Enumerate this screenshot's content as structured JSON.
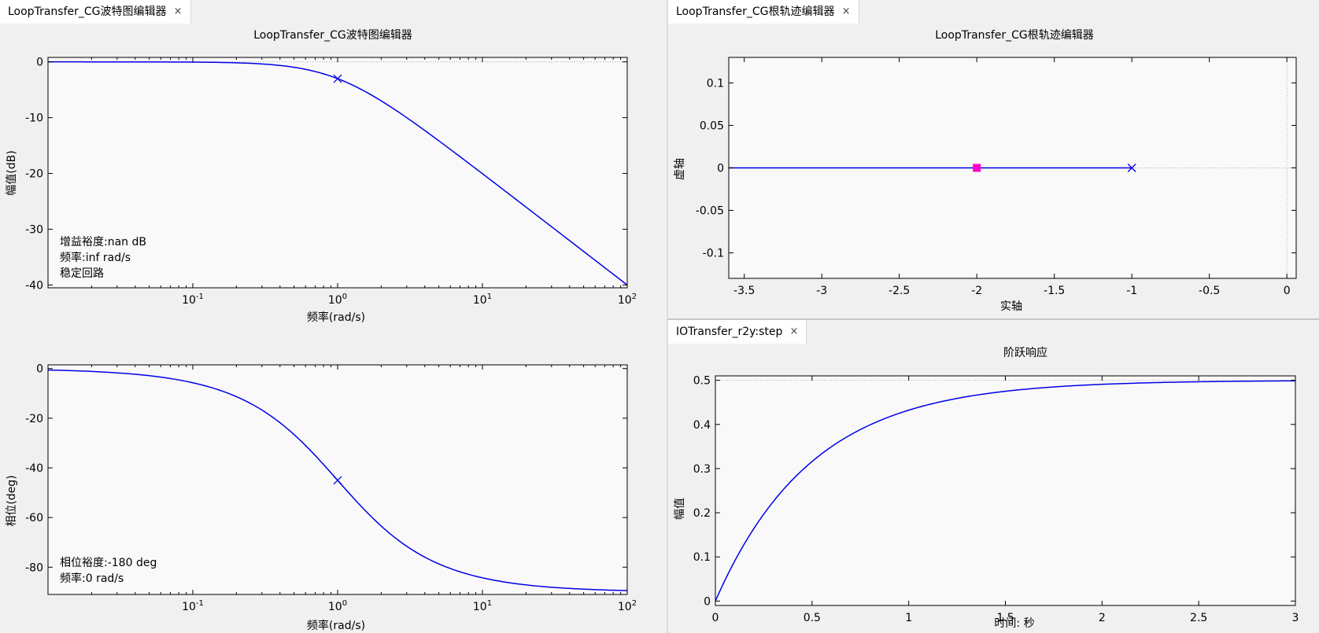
{
  "tabs": {
    "bode": "LoopTransfer_CG波特图编辑器",
    "rlocus": "LoopTransfer_CG根轨迹编辑器",
    "step": "IOTransfer_r2y:step",
    "close_glyph": "×"
  },
  "bode_mag": {
    "title": "LoopTransfer_CG波特图编辑器",
    "xlabel": "频率(rad/s)",
    "ylabel": "幅值(dB)",
    "annotations": [
      "增益裕度:nan dB",
      "频率:inf rad/s",
      "稳定回路"
    ]
  },
  "bode_phase": {
    "xlabel": "频率(rad/s)",
    "ylabel": "相位(deg)",
    "annotations": [
      "相位裕度:-180 deg",
      "频率:0 rad/s"
    ]
  },
  "rlocus": {
    "title": "LoopTransfer_CG根轨迹编辑器",
    "xlabel": "实轴",
    "ylabel": "虚轴"
  },
  "step": {
    "title": "阶跃响应",
    "xlabel": "时间: 秒",
    "ylabel": "幅值"
  },
  "chart_data": [
    {
      "type": "line",
      "id": "bode-magnitude",
      "title": "LoopTransfer_CG波特图编辑器",
      "xlabel": "频率(rad/s)",
      "ylabel": "幅值(dB)",
      "xscale": "log",
      "xlim": [
        0.01,
        100
      ],
      "ylim": [
        -40.5,
        0.8
      ],
      "xticks": [
        0.1,
        1,
        10,
        100
      ],
      "xtick_labels": [
        "10-1",
        "100",
        "101",
        "102"
      ],
      "yticks": [
        0,
        -10,
        -20,
        -30,
        -40
      ],
      "series": [
        {
          "x": [
            0.01,
            0.1,
            0.2,
            0.5,
            1,
            2,
            5,
            10,
            20,
            50,
            100
          ],
          "values": [
            0.0,
            -0.04,
            -0.17,
            -0.97,
            -3.01,
            -6.99,
            -14.15,
            -20.04,
            -26.03,
            -33.98,
            -40.0
          ]
        }
      ],
      "markers": [
        {
          "x": 1,
          "y": -3.01,
          "shape": "x"
        }
      ],
      "legend": "none",
      "grid": false
    },
    {
      "type": "line",
      "id": "bode-phase",
      "xlabel": "频率(rad/s)",
      "ylabel": "相位(deg)",
      "xscale": "log",
      "xlim": [
        0.01,
        100
      ],
      "ylim": [
        -91,
        1.5
      ],
      "xticks": [
        0.1,
        1,
        10,
        100
      ],
      "xtick_labels": [
        "10-1",
        "100",
        "101",
        "102"
      ],
      "yticks": [
        0,
        -20,
        -40,
        -60,
        -80
      ],
      "series": [
        {
          "x": [
            0.01,
            0.1,
            0.2,
            0.5,
            1,
            2,
            5,
            10,
            20,
            50,
            100
          ],
          "values": [
            -0.57,
            -5.71,
            -11.31,
            -26.57,
            -45.0,
            -63.43,
            -78.69,
            -84.29,
            -87.14,
            -88.85,
            -89.43
          ]
        }
      ],
      "markers": [
        {
          "x": 1,
          "y": -45.0,
          "shape": "x"
        }
      ],
      "legend": "none",
      "grid": false
    },
    {
      "type": "line",
      "id": "root-locus",
      "title": "LoopTransfer_CG根轨迹编辑器",
      "xlabel": "实轴",
      "ylabel": "虚轴",
      "xlim": [
        -3.6,
        0.06
      ],
      "ylim": [
        -0.13,
        0.13
      ],
      "xticks": [
        -3.5,
        -3,
        -2.5,
        -2,
        -1.5,
        -1,
        -0.5,
        0
      ],
      "yticks": [
        0.1,
        0.05,
        0,
        -0.05,
        -0.1
      ],
      "series": [
        {
          "x": [
            -3.6,
            -1
          ],
          "values": [
            0,
            0
          ]
        }
      ],
      "markers": [
        {
          "x": -2,
          "y": 0,
          "shape": "square",
          "color": "#ff00cc"
        },
        {
          "x": -1,
          "y": 0,
          "shape": "x"
        }
      ],
      "legend": "none",
      "grid": false
    },
    {
      "type": "line",
      "id": "step-response",
      "title": "阶跃响应",
      "xlabel": "时间: 秒",
      "ylabel": "幅值",
      "xlim": [
        0,
        3
      ],
      "ylim": [
        -0.01,
        0.51
      ],
      "xticks": [
        0,
        0.5,
        1,
        1.5,
        2,
        2.5,
        3
      ],
      "yticks": [
        0,
        0.1,
        0.2,
        0.3,
        0.4,
        0.5
      ],
      "series": [
        {
          "x": [
            0,
            0.1,
            0.2,
            0.3,
            0.4,
            0.5,
            0.75,
            1,
            1.25,
            1.5,
            1.75,
            2,
            2.5,
            3
          ],
          "values": [
            0,
            0.0906,
            0.1648,
            0.2256,
            0.2753,
            0.3161,
            0.3911,
            0.4323,
            0.4571,
            0.4751,
            0.486,
            0.4908,
            0.4966,
            0.4988
          ]
        }
      ],
      "final_value": 0.5,
      "legend": "none",
      "grid": false
    }
  ]
}
